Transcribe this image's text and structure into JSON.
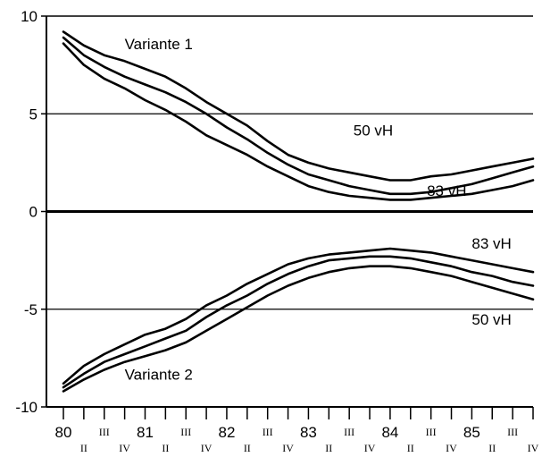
{
  "chart_data": {
    "type": "line",
    "x": [
      0,
      0.25,
      0.5,
      0.75,
      1.0,
      1.25,
      1.5,
      1.75,
      2.0,
      2.25,
      2.5,
      2.75,
      3.0,
      3.25,
      3.5,
      3.75,
      4.0,
      4.25,
      4.5,
      4.75,
      5.0,
      5.25,
      5.5,
      5.75
    ],
    "xlim": [
      0,
      5.75
    ],
    "ylim": [
      -10,
      10
    ],
    "y_ticks": [
      10,
      5,
      0,
      -5,
      -10
    ],
    "y_tick_labels": [
      "10",
      "5",
      "0",
      "-5",
      "-10"
    ],
    "x_year_labels": [
      {
        "x": 0,
        "label": "80"
      },
      {
        "x": 1,
        "label": "81"
      },
      {
        "x": 2,
        "label": "82"
      },
      {
        "x": 3,
        "label": "83"
      },
      {
        "x": 4,
        "label": "84"
      },
      {
        "x": 5,
        "label": "85"
      }
    ],
    "x_quarter_labels": [
      {
        "x": 0.25,
        "label": "II"
      },
      {
        "x": 0.5,
        "label": "III"
      },
      {
        "x": 0.75,
        "label": "IV"
      },
      {
        "x": 1.25,
        "label": "II"
      },
      {
        "x": 1.5,
        "label": "III"
      },
      {
        "x": 1.75,
        "label": "IV"
      },
      {
        "x": 2.25,
        "label": "II"
      },
      {
        "x": 2.5,
        "label": "III"
      },
      {
        "x": 2.75,
        "label": "IV"
      },
      {
        "x": 3.25,
        "label": "II"
      },
      {
        "x": 3.5,
        "label": "III"
      },
      {
        "x": 3.75,
        "label": "IV"
      },
      {
        "x": 4.25,
        "label": "II"
      },
      {
        "x": 4.5,
        "label": "III"
      },
      {
        "x": 4.75,
        "label": "IV"
      },
      {
        "x": 5.25,
        "label": "II"
      },
      {
        "x": 5.5,
        "label": "III"
      },
      {
        "x": 5.75,
        "label": "IV"
      }
    ],
    "hlines": [
      5,
      0,
      -5
    ],
    "series": [
      {
        "values": [
          9.2,
          8.5,
          8.0,
          7.7,
          7.3,
          6.9,
          6.3,
          5.6,
          5.0,
          4.4,
          3.6,
          2.9,
          2.5,
          2.2,
          2.0,
          1.8,
          1.6,
          1.6,
          1.8,
          1.9,
          2.1,
          2.3,
          2.5,
          2.7
        ]
      },
      {
        "values": [
          8.9,
          8.0,
          7.4,
          6.9,
          6.5,
          6.1,
          5.6,
          5.0,
          4.3,
          3.7,
          3.0,
          2.4,
          1.9,
          1.6,
          1.3,
          1.1,
          0.9,
          0.9,
          1.0,
          1.2,
          1.4,
          1.7,
          2.0,
          2.3
        ]
      },
      {
        "values": [
          8.6,
          7.5,
          6.8,
          6.3,
          5.7,
          5.2,
          4.6,
          3.9,
          3.4,
          2.9,
          2.3,
          1.8,
          1.3,
          1.0,
          0.8,
          0.7,
          0.6,
          0.6,
          0.7,
          0.8,
          0.9,
          1.1,
          1.3,
          1.6
        ]
      },
      {
        "values": [
          -8.8,
          -7.9,
          -7.3,
          -6.8,
          -6.3,
          -6.0,
          -5.5,
          -4.8,
          -4.3,
          -3.7,
          -3.2,
          -2.7,
          -2.4,
          -2.2,
          -2.1,
          -2.0,
          -1.9,
          -2.0,
          -2.1,
          -2.3,
          -2.5,
          -2.7,
          -2.9,
          -3.1
        ]
      },
      {
        "values": [
          -9.0,
          -8.3,
          -7.7,
          -7.3,
          -6.9,
          -6.5,
          -6.1,
          -5.4,
          -4.8,
          -4.3,
          -3.7,
          -3.2,
          -2.8,
          -2.5,
          -2.4,
          -2.3,
          -2.3,
          -2.4,
          -2.6,
          -2.8,
          -3.1,
          -3.3,
          -3.6,
          -3.8
        ]
      },
      {
        "values": [
          -9.2,
          -8.6,
          -8.1,
          -7.7,
          -7.4,
          -7.1,
          -6.7,
          -6.1,
          -5.5,
          -4.9,
          -4.3,
          -3.8,
          -3.4,
          -3.1,
          -2.9,
          -2.8,
          -2.8,
          -2.9,
          -3.1,
          -3.3,
          -3.6,
          -3.9,
          -4.2,
          -4.5
        ]
      }
    ],
    "annotations": [
      {
        "text": "Variante 1",
        "x": 0.75,
        "y": 8.3
      },
      {
        "text": "50 vH",
        "x": 3.55,
        "y": 3.9
      },
      {
        "text": "83 vH",
        "x": 4.45,
        "y": 0.8
      },
      {
        "text": "83 vH",
        "x": 5.0,
        "y": -1.9
      },
      {
        "text": "50 vH",
        "x": 5.0,
        "y": -5.8
      },
      {
        "text": "Variante 2",
        "x": 0.75,
        "y": -8.6
      }
    ],
    "grid": false
  }
}
